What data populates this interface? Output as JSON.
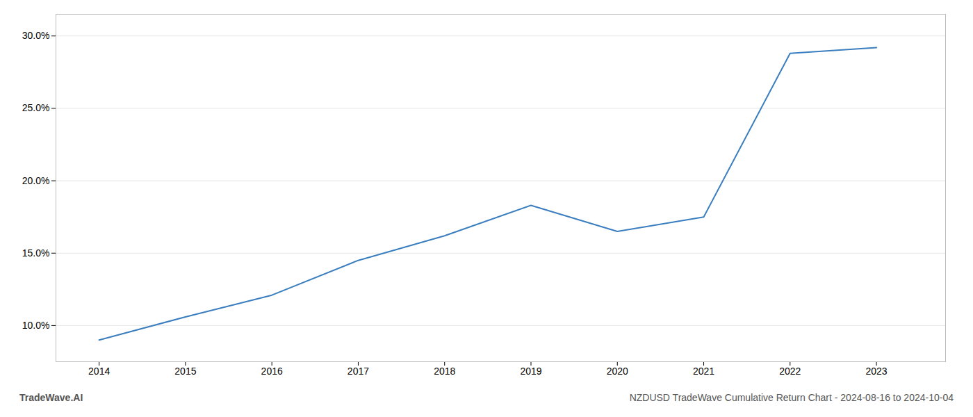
{
  "chart_data": {
    "type": "line",
    "x": [
      2014,
      2015,
      2016,
      2017,
      2018,
      2019,
      2020,
      2021,
      2022,
      2023
    ],
    "values": [
      9.0,
      10.6,
      12.1,
      14.5,
      16.2,
      18.3,
      16.5,
      17.5,
      28.8,
      29.2
    ],
    "color": "#3a7ebf",
    "xlim": [
      2013.5,
      2023.8
    ],
    "xticks": [
      2014,
      2015,
      2016,
      2017,
      2018,
      2019,
      2020,
      2021,
      2022,
      2023
    ],
    "ylim": [
      7.5,
      31.5
    ],
    "yticks": [
      {
        "value": 10.0,
        "label": "10.0%"
      },
      {
        "value": 15.0,
        "label": "15.0%"
      },
      {
        "value": 20.0,
        "label": "20.0%"
      },
      {
        "value": 25.0,
        "label": "25.0%"
      },
      {
        "value": 30.0,
        "label": "30.0%"
      }
    ],
    "grid": true,
    "annotations": [
      "TradeWave.AI",
      "NZDUSD TradeWave Cumulative Return Chart - 2024-08-16 to 2024-10-04"
    ]
  }
}
